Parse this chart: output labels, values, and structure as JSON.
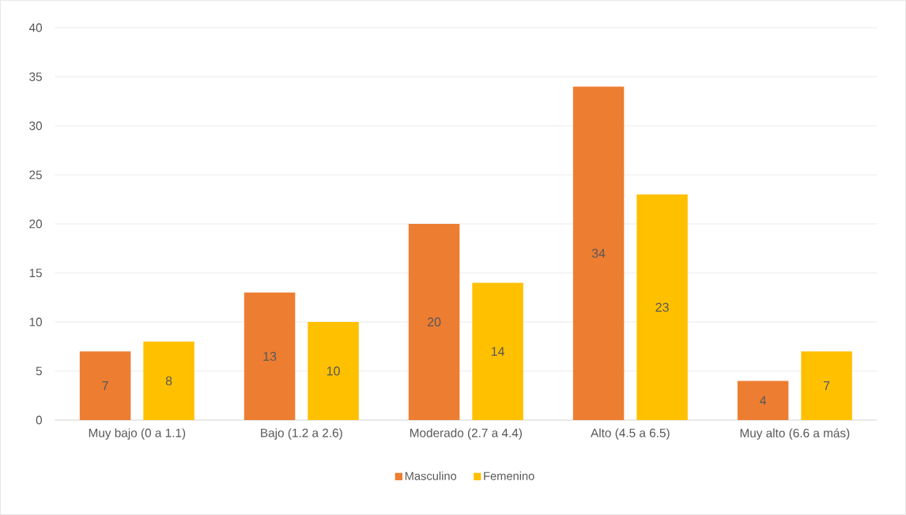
{
  "chart_data": {
    "type": "bar",
    "categories": [
      "Muy bajo (0 a 1.1)",
      "Bajo (1.2 a 2.6)",
      "Moderado (2.7 a 4.4)",
      "Alto (4.5 a 6.5)",
      "Muy alto (6.6  a más)"
    ],
    "series": [
      {
        "name": "Masculino",
        "color": "#ed7d31",
        "values": [
          7,
          13,
          20,
          34,
          4
        ]
      },
      {
        "name": "Femenino",
        "color": "#ffc000",
        "values": [
          8,
          10,
          14,
          23,
          7
        ]
      }
    ],
    "ylim": [
      0,
      40
    ],
    "yticks": [
      0,
      5,
      10,
      15,
      20,
      25,
      30,
      35,
      40
    ],
    "grid": "y",
    "legend": "bottom",
    "data_labels": true
  }
}
